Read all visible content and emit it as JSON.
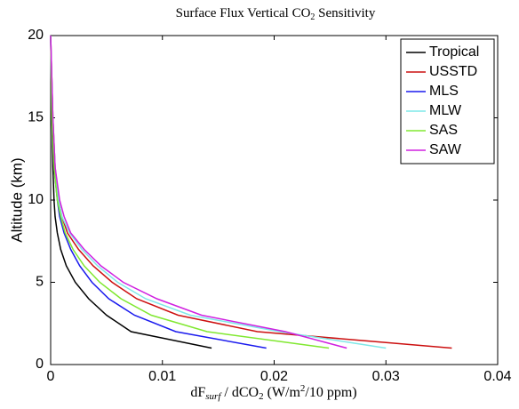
{
  "chart_data": {
    "type": "line",
    "title": [
      "Surface Flux Vertical CO",
      "2",
      " Sensitivity"
    ],
    "x_label": [
      "dF",
      "surf",
      " / dCO",
      "2",
      " (W/m",
      "2",
      "/10 ppm)"
    ],
    "y_label": "Altitude (km)",
    "y": [
      1,
      2,
      3,
      4,
      5,
      6,
      7,
      8,
      9,
      10,
      12,
      15,
      20
    ],
    "series": [
      {
        "name": "Tropical",
        "color": "#000000",
        "values": [
          0.0144,
          0.0072,
          0.005,
          0.0034,
          0.0022,
          0.0014,
          0.0009,
          0.0006,
          0.0004,
          0.0003,
          0.0002,
          0.0001,
          0
        ]
      },
      {
        "name": "USSTD",
        "color": "#cc1010",
        "values": [
          0.0359,
          0.0185,
          0.0114,
          0.0077,
          0.0055,
          0.0038,
          0.0025,
          0.0015,
          0.001,
          0.0007,
          0.0004,
          0.0002,
          0
        ]
      },
      {
        "name": "MLS",
        "color": "#1a1aee",
        "values": [
          0.0193,
          0.0112,
          0.0075,
          0.0052,
          0.0037,
          0.0026,
          0.0018,
          0.0012,
          0.0008,
          0.0006,
          0.0003,
          0.0001,
          0
        ]
      },
      {
        "name": "MLW",
        "color": "#7fe8e8",
        "values": [
          0.03,
          0.0205,
          0.0125,
          0.0085,
          0.006,
          0.0042,
          0.0028,
          0.0017,
          0.001,
          0.0007,
          0.0004,
          0.0002,
          0
        ]
      },
      {
        "name": "SAS",
        "color": "#80e830",
        "values": [
          0.0249,
          0.014,
          0.009,
          0.0063,
          0.0044,
          0.003,
          0.002,
          0.0013,
          0.0009,
          0.0006,
          0.0003,
          0.0001,
          0
        ]
      },
      {
        "name": "SAW",
        "color": "#d020e0",
        "values": [
          0.0265,
          0.021,
          0.0135,
          0.0095,
          0.0065,
          0.0045,
          0.003,
          0.0018,
          0.0012,
          0.0008,
          0.0004,
          0.0002,
          0
        ]
      }
    ],
    "xlim": [
      0,
      0.04
    ],
    "xticks": [
      0,
      0.01,
      0.02,
      0.03,
      0.04
    ],
    "ylim": [
      0,
      20
    ],
    "yticks": [
      0,
      5,
      10,
      15,
      20
    ],
    "legend": "top-right"
  }
}
